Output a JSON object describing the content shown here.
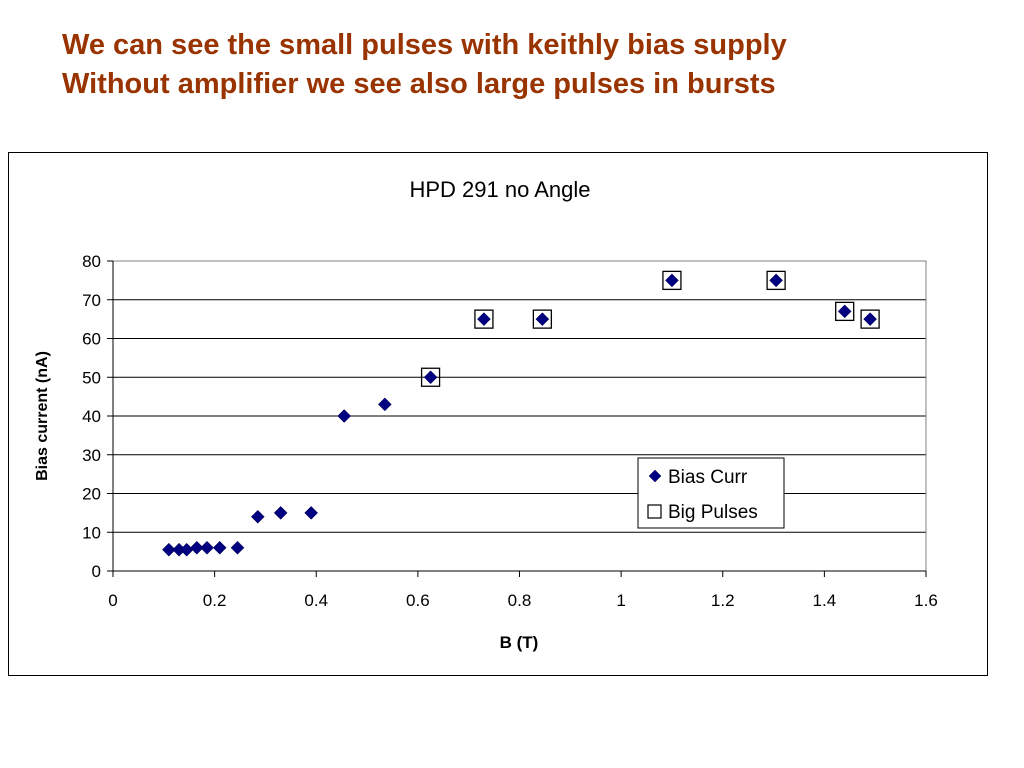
{
  "slide": {
    "title_lines": [
      "We can see the small pulses with keithly bias supply",
      "Without amplifier we see also large pulses in bursts"
    ]
  },
  "colors": {
    "title": "#993300",
    "marker": "#000080",
    "gridline": "#000000"
  },
  "chart_data": {
    "type": "scatter",
    "title": "HPD 291 no Angle",
    "xlabel": "B (T)",
    "ylabel": "Bias current (nA)",
    "xlim": [
      0,
      1.6
    ],
    "ylim": [
      0,
      80
    ],
    "xticks": [
      "0",
      "0.2",
      "0.4",
      "0.6",
      "0.8",
      "1",
      "1.2",
      "1.4",
      "1.6"
    ],
    "yticks": [
      "0",
      "10",
      "20",
      "30",
      "40",
      "50",
      "60",
      "70",
      "80"
    ],
    "grid": "horizontal",
    "legend_position": "right",
    "series": [
      {
        "name": "Bias Curr",
        "marker": "filled-diamond",
        "x": [
          0.11,
          0.13,
          0.145,
          0.165,
          0.185,
          0.21,
          0.245,
          0.285,
          0.33,
          0.39,
          0.455,
          0.535,
          0.625,
          0.73,
          0.845,
          1.1,
          1.305,
          1.44,
          1.49
        ],
        "y": [
          5.5,
          5.5,
          5.5,
          6,
          6,
          6,
          6,
          14,
          15,
          15,
          40,
          43,
          50,
          65,
          65,
          75,
          75,
          67,
          65
        ]
      },
      {
        "name": "Big Pulses",
        "marker": "open-square",
        "x": [
          0.625,
          0.73,
          0.845,
          1.1,
          1.305,
          1.44,
          1.49
        ],
        "y": [
          50,
          65,
          65,
          75,
          75,
          67,
          65
        ]
      }
    ]
  }
}
